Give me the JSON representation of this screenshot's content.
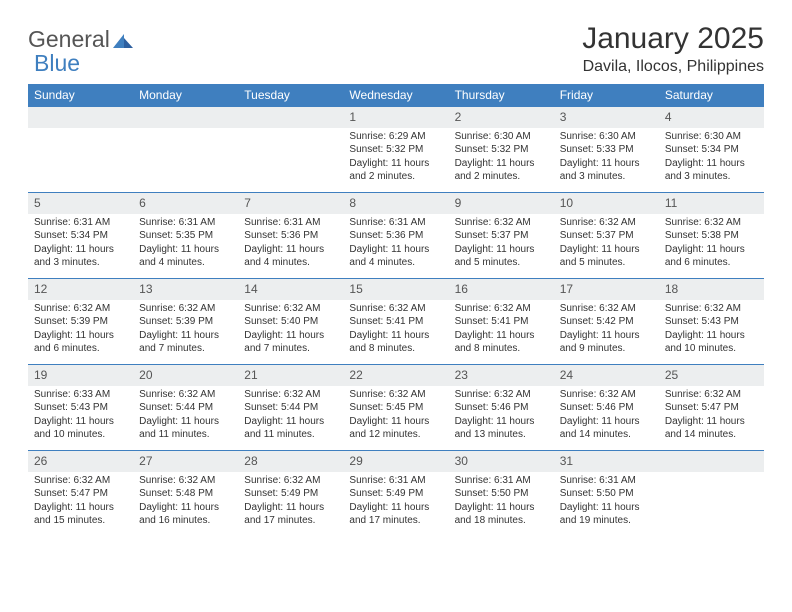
{
  "logo": {
    "word1": "General",
    "word2": "Blue",
    "triangle_color": "#3f7fbf"
  },
  "header": {
    "month_title": "January 2025",
    "location": "Davila, Ilocos, Philippines"
  },
  "calendar": {
    "header_bg": "#3f7fbf",
    "header_text_color": "#ffffff",
    "daynum_bg": "#eceeef",
    "divider_color": "#3f7fbf",
    "daynames": [
      "Sunday",
      "Monday",
      "Tuesday",
      "Wednesday",
      "Thursday",
      "Friday",
      "Saturday"
    ],
    "weeks": [
      [
        {
          "day": "",
          "sunrise": "",
          "sunset": "",
          "daylight": ""
        },
        {
          "day": "",
          "sunrise": "",
          "sunset": "",
          "daylight": ""
        },
        {
          "day": "",
          "sunrise": "",
          "sunset": "",
          "daylight": ""
        },
        {
          "day": "1",
          "sunrise": "Sunrise: 6:29 AM",
          "sunset": "Sunset: 5:32 PM",
          "daylight": "Daylight: 11 hours and 2 minutes."
        },
        {
          "day": "2",
          "sunrise": "Sunrise: 6:30 AM",
          "sunset": "Sunset: 5:32 PM",
          "daylight": "Daylight: 11 hours and 2 minutes."
        },
        {
          "day": "3",
          "sunrise": "Sunrise: 6:30 AM",
          "sunset": "Sunset: 5:33 PM",
          "daylight": "Daylight: 11 hours and 3 minutes."
        },
        {
          "day": "4",
          "sunrise": "Sunrise: 6:30 AM",
          "sunset": "Sunset: 5:34 PM",
          "daylight": "Daylight: 11 hours and 3 minutes."
        }
      ],
      [
        {
          "day": "5",
          "sunrise": "Sunrise: 6:31 AM",
          "sunset": "Sunset: 5:34 PM",
          "daylight": "Daylight: 11 hours and 3 minutes."
        },
        {
          "day": "6",
          "sunrise": "Sunrise: 6:31 AM",
          "sunset": "Sunset: 5:35 PM",
          "daylight": "Daylight: 11 hours and 4 minutes."
        },
        {
          "day": "7",
          "sunrise": "Sunrise: 6:31 AM",
          "sunset": "Sunset: 5:36 PM",
          "daylight": "Daylight: 11 hours and 4 minutes."
        },
        {
          "day": "8",
          "sunrise": "Sunrise: 6:31 AM",
          "sunset": "Sunset: 5:36 PM",
          "daylight": "Daylight: 11 hours and 4 minutes."
        },
        {
          "day": "9",
          "sunrise": "Sunrise: 6:32 AM",
          "sunset": "Sunset: 5:37 PM",
          "daylight": "Daylight: 11 hours and 5 minutes."
        },
        {
          "day": "10",
          "sunrise": "Sunrise: 6:32 AM",
          "sunset": "Sunset: 5:37 PM",
          "daylight": "Daylight: 11 hours and 5 minutes."
        },
        {
          "day": "11",
          "sunrise": "Sunrise: 6:32 AM",
          "sunset": "Sunset: 5:38 PM",
          "daylight": "Daylight: 11 hours and 6 minutes."
        }
      ],
      [
        {
          "day": "12",
          "sunrise": "Sunrise: 6:32 AM",
          "sunset": "Sunset: 5:39 PM",
          "daylight": "Daylight: 11 hours and 6 minutes."
        },
        {
          "day": "13",
          "sunrise": "Sunrise: 6:32 AM",
          "sunset": "Sunset: 5:39 PM",
          "daylight": "Daylight: 11 hours and 7 minutes."
        },
        {
          "day": "14",
          "sunrise": "Sunrise: 6:32 AM",
          "sunset": "Sunset: 5:40 PM",
          "daylight": "Daylight: 11 hours and 7 minutes."
        },
        {
          "day": "15",
          "sunrise": "Sunrise: 6:32 AM",
          "sunset": "Sunset: 5:41 PM",
          "daylight": "Daylight: 11 hours and 8 minutes."
        },
        {
          "day": "16",
          "sunrise": "Sunrise: 6:32 AM",
          "sunset": "Sunset: 5:41 PM",
          "daylight": "Daylight: 11 hours and 8 minutes."
        },
        {
          "day": "17",
          "sunrise": "Sunrise: 6:32 AM",
          "sunset": "Sunset: 5:42 PM",
          "daylight": "Daylight: 11 hours and 9 minutes."
        },
        {
          "day": "18",
          "sunrise": "Sunrise: 6:32 AM",
          "sunset": "Sunset: 5:43 PM",
          "daylight": "Daylight: 11 hours and 10 minutes."
        }
      ],
      [
        {
          "day": "19",
          "sunrise": "Sunrise: 6:33 AM",
          "sunset": "Sunset: 5:43 PM",
          "daylight": "Daylight: 11 hours and 10 minutes."
        },
        {
          "day": "20",
          "sunrise": "Sunrise: 6:32 AM",
          "sunset": "Sunset: 5:44 PM",
          "daylight": "Daylight: 11 hours and 11 minutes."
        },
        {
          "day": "21",
          "sunrise": "Sunrise: 6:32 AM",
          "sunset": "Sunset: 5:44 PM",
          "daylight": "Daylight: 11 hours and 11 minutes."
        },
        {
          "day": "22",
          "sunrise": "Sunrise: 6:32 AM",
          "sunset": "Sunset: 5:45 PM",
          "daylight": "Daylight: 11 hours and 12 minutes."
        },
        {
          "day": "23",
          "sunrise": "Sunrise: 6:32 AM",
          "sunset": "Sunset: 5:46 PM",
          "daylight": "Daylight: 11 hours and 13 minutes."
        },
        {
          "day": "24",
          "sunrise": "Sunrise: 6:32 AM",
          "sunset": "Sunset: 5:46 PM",
          "daylight": "Daylight: 11 hours and 14 minutes."
        },
        {
          "day": "25",
          "sunrise": "Sunrise: 6:32 AM",
          "sunset": "Sunset: 5:47 PM",
          "daylight": "Daylight: 11 hours and 14 minutes."
        }
      ],
      [
        {
          "day": "26",
          "sunrise": "Sunrise: 6:32 AM",
          "sunset": "Sunset: 5:47 PM",
          "daylight": "Daylight: 11 hours and 15 minutes."
        },
        {
          "day": "27",
          "sunrise": "Sunrise: 6:32 AM",
          "sunset": "Sunset: 5:48 PM",
          "daylight": "Daylight: 11 hours and 16 minutes."
        },
        {
          "day": "28",
          "sunrise": "Sunrise: 6:32 AM",
          "sunset": "Sunset: 5:49 PM",
          "daylight": "Daylight: 11 hours and 17 minutes."
        },
        {
          "day": "29",
          "sunrise": "Sunrise: 6:31 AM",
          "sunset": "Sunset: 5:49 PM",
          "daylight": "Daylight: 11 hours and 17 minutes."
        },
        {
          "day": "30",
          "sunrise": "Sunrise: 6:31 AM",
          "sunset": "Sunset: 5:50 PM",
          "daylight": "Daylight: 11 hours and 18 minutes."
        },
        {
          "day": "31",
          "sunrise": "Sunrise: 6:31 AM",
          "sunset": "Sunset: 5:50 PM",
          "daylight": "Daylight: 11 hours and 19 minutes."
        },
        {
          "day": "",
          "sunrise": "",
          "sunset": "",
          "daylight": ""
        }
      ]
    ]
  }
}
